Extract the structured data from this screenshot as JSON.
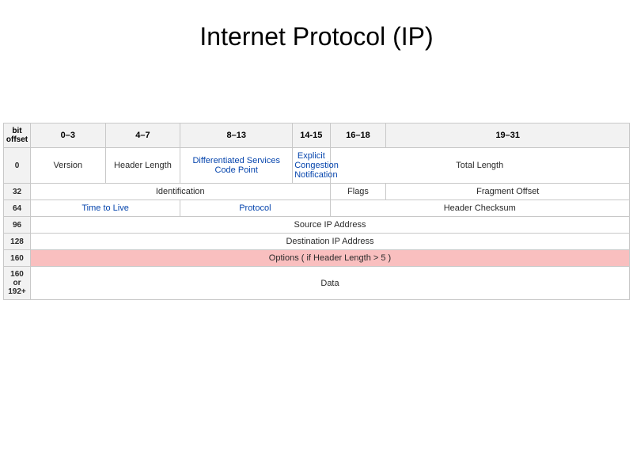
{
  "title": "Internet Protocol (IP)",
  "colors": {
    "background": "#ffffff",
    "border": "#c8c8c8",
    "header_bg": "#f2f2f2",
    "text": "#2a2a2a",
    "link": "#0645ad",
    "highlight_bg": "#f9bfbf",
    "title_color": "#000000"
  },
  "typography": {
    "title_fontsize": 32,
    "cell_fontsize": 11,
    "offset_fontsize": 10,
    "font_family": "Arial"
  },
  "header": {
    "offset_label": "bit offset",
    "ranges": [
      "0–3",
      "4–7",
      "8–13",
      "14-15",
      "16–18",
      "19–31"
    ]
  },
  "col_bits": [
    4,
    4,
    6,
    2,
    3,
    13
  ],
  "rows": [
    {
      "offset": "0",
      "cells": [
        {
          "label": "Version",
          "colspan": 4,
          "link": false
        },
        {
          "label": "Header Length",
          "colspan": 4,
          "link": false
        },
        {
          "label": "Differentiated Services Code Point",
          "colspan": 6,
          "link": true
        },
        {
          "label": "Explicit Congestion Notification",
          "colspan": 2,
          "link": true
        },
        {
          "label": "Total Length",
          "colspan": 16,
          "link": false
        }
      ]
    },
    {
      "offset": "32",
      "cells": [
        {
          "label": "Identification",
          "colspan": 16,
          "link": false
        },
        {
          "label": "Flags",
          "colspan": 3,
          "link": false
        },
        {
          "label": "Fragment Offset",
          "colspan": 13,
          "link": false
        }
      ]
    },
    {
      "offset": "64",
      "cells": [
        {
          "label": "Time to Live",
          "colspan": 8,
          "link": true
        },
        {
          "label": "Protocol",
          "colspan": 8,
          "link": true
        },
        {
          "label": "Header Checksum",
          "colspan": 16,
          "link": false
        }
      ]
    },
    {
      "offset": "96",
      "cells": [
        {
          "label": "Source IP Address",
          "colspan": 32,
          "link": false
        }
      ]
    },
    {
      "offset": "128",
      "cells": [
        {
          "label": "Destination IP Address",
          "colspan": 32,
          "link": false
        }
      ]
    },
    {
      "offset": "160",
      "cells": [
        {
          "label": "Options ( if Header Length > 5 )",
          "colspan": 32,
          "link": false,
          "highlight": true
        }
      ]
    },
    {
      "offset": "160 or 192+",
      "cells": [
        {
          "label": "Data",
          "colspan": 32,
          "link": false
        }
      ]
    }
  ]
}
